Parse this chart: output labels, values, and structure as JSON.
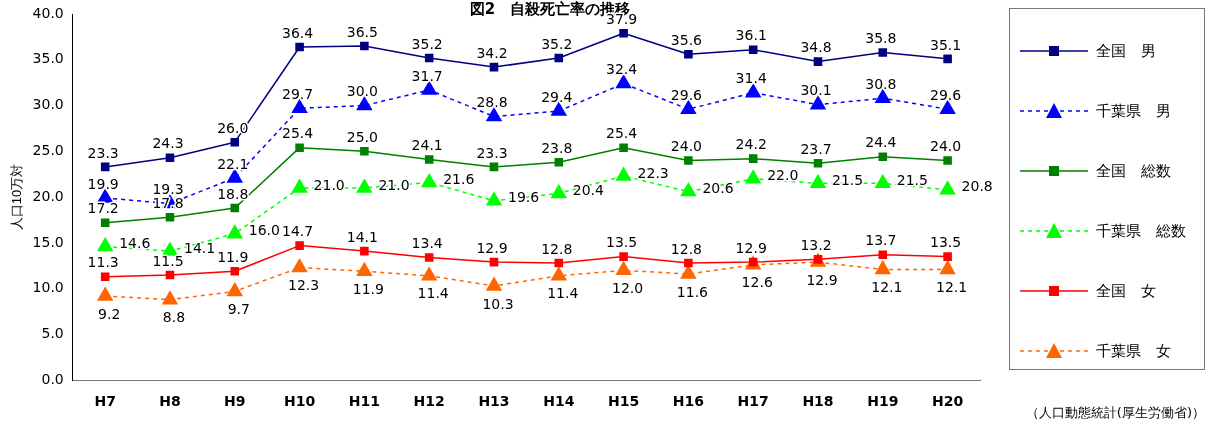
{
  "chart_data": {
    "type": "line",
    "title": "図2　自殺死亡率の推移",
    "ylabel": "人口10万対",
    "annotations": [
      "（人口動態統計(厚生労働省)）"
    ],
    "categories": [
      "H7",
      "H8",
      "H9",
      "H10",
      "H11",
      "H12",
      "H13",
      "H14",
      "H15",
      "H16",
      "H17",
      "H18",
      "H19",
      "H20"
    ],
    "ylim": [
      0,
      40
    ],
    "yticks": [
      {
        "value": 0,
        "label": "0.0"
      },
      {
        "value": 5,
        "label": "5.0"
      },
      {
        "value": 10,
        "label": "10.0"
      },
      {
        "value": 15,
        "label": "15.0"
      },
      {
        "value": 20,
        "label": "20.0"
      },
      {
        "value": 25,
        "label": "25.0"
      },
      {
        "value": 30,
        "label": "30.0"
      },
      {
        "value": 35,
        "label": "35.0"
      },
      {
        "value": 40,
        "label": "40.0"
      }
    ],
    "grid": false,
    "legend": "right",
    "series": [
      {
        "name": "全国　男",
        "color": "#000080",
        "marker": "square",
        "line_style": "solid",
        "values": [
          23.3,
          24.3,
          26.0,
          36.4,
          36.5,
          35.2,
          34.2,
          35.2,
          37.9,
          35.6,
          36.1,
          34.8,
          35.8,
          35.1
        ],
        "value_labels": [
          "23.3",
          "24.3",
          "26.0",
          "36.4",
          "36.5",
          "35.2",
          "34.2",
          "35.2",
          "37.9",
          "35.6",
          "36.1",
          "34.8",
          "35.8",
          "35.1"
        ]
      },
      {
        "name": "千葉県　男",
        "color": "#0000ff",
        "marker": "triangle",
        "line_style": "dashed",
        "values": [
          19.9,
          19.3,
          22.1,
          29.7,
          30.0,
          31.7,
          28.8,
          29.4,
          32.4,
          29.6,
          31.4,
          30.1,
          30.8,
          29.6
        ],
        "value_labels": [
          "19.9",
          "19.3",
          "22.1",
          "29.7",
          "30.0",
          "31.7",
          "28.8",
          "29.4",
          "32.4",
          "29.6",
          "31.4",
          "30.1",
          "30.8",
          "29.6"
        ]
      },
      {
        "name": "全国　総数",
        "color": "#008000",
        "marker": "square",
        "line_style": "solid",
        "values": [
          17.2,
          17.8,
          18.8,
          25.4,
          25.0,
          24.1,
          23.3,
          23.8,
          25.4,
          24.0,
          24.2,
          23.7,
          24.4,
          24.0
        ],
        "value_labels": [
          "17.2",
          "17.8",
          "18.8",
          "25.4",
          "25.0",
          "24.1",
          "23.3",
          "23.8",
          "25.4",
          "24.0",
          "24.2",
          "23.7",
          "24.4",
          "24.0"
        ]
      },
      {
        "name": "千葉県　総数",
        "color": "#00ff00",
        "marker": "triangle",
        "line_style": "dashed",
        "values": [
          14.6,
          14.1,
          16.0,
          21.0,
          21.0,
          21.6,
          19.6,
          20.4,
          22.3,
          20.6,
          22.0,
          21.5,
          21.5,
          20.8
        ],
        "value_labels": [
          "14.6",
          "14.1",
          "16.0",
          "21.0",
          "21.0",
          "21.6",
          "19.6",
          "20.4",
          "22.3",
          "20.6",
          "22.0",
          "21.5",
          "21.5",
          "20.8"
        ]
      },
      {
        "name": "全国　女",
        "color": "#ff0000",
        "marker": "square",
        "line_style": "solid",
        "values": [
          11.3,
          11.5,
          11.9,
          14.7,
          14.1,
          13.4,
          12.9,
          12.8,
          13.5,
          12.8,
          12.9,
          13.2,
          13.7,
          13.5
        ],
        "value_labels": [
          "11.3",
          "11.5",
          "11.9",
          "14.7",
          "14.1",
          "13.4",
          "12.9",
          "12.8",
          "13.5",
          "12.8",
          "12.9",
          "13.2",
          "13.7",
          "13.5"
        ]
      },
      {
        "name": "千葉県　女",
        "color": "#ff6600",
        "marker": "triangle",
        "line_style": "dashed",
        "values": [
          9.2,
          8.8,
          9.7,
          12.3,
          11.9,
          11.4,
          10.3,
          11.4,
          12.0,
          11.6,
          12.6,
          12.9,
          12.1,
          12.1
        ],
        "value_labels": [
          "9.2",
          "8.8",
          "9.7",
          "12.3",
          "11.9",
          "11.4",
          "10.3",
          "11.4",
          "12.0",
          "11.6",
          "12.6",
          "12.9",
          "12.1",
          "12.1"
        ]
      }
    ]
  }
}
